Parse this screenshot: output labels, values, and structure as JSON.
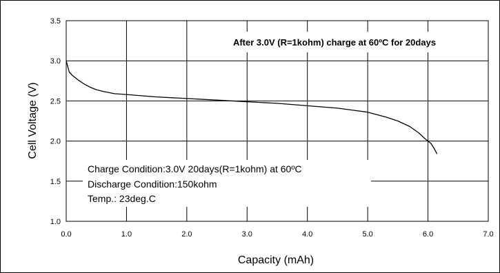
{
  "chart_data": {
    "type": "line",
    "title": "After 3.0V (R=1kohm) charge at 60ºC for 20days",
    "xlabel": "Capacity (mAh)",
    "ylabel": "Cell Voltage (V)",
    "xlim": [
      0,
      7
    ],
    "ylim": [
      1.0,
      3.5
    ],
    "x_ticks": [
      "0.0",
      "1.0",
      "2.0",
      "3.0",
      "4.0",
      "5.0",
      "6.0",
      "7.0"
    ],
    "y_ticks": [
      "1.0",
      "1.5",
      "2.0",
      "2.5",
      "3.0",
      "3.5"
    ],
    "grid": true,
    "annotations": [
      "Charge Condition:3.0V 20days(R=1kohm) at 60ºC",
      "Discharge Condition:150kohm",
      "Temp.: 23deg.C"
    ],
    "series": [
      {
        "color": "#000000",
        "x": [
          0.0,
          0.05,
          0.1,
          0.2,
          0.3,
          0.4,
          0.5,
          0.6,
          0.8,
          1.0,
          1.5,
          2.0,
          2.5,
          3.0,
          3.5,
          4.0,
          4.5,
          5.0,
          5.3,
          5.5,
          5.7,
          5.85,
          5.95,
          6.05,
          6.1,
          6.15
        ],
        "y": [
          3.0,
          2.86,
          2.82,
          2.76,
          2.71,
          2.67,
          2.64,
          2.62,
          2.59,
          2.58,
          2.55,
          2.53,
          2.51,
          2.49,
          2.47,
          2.44,
          2.41,
          2.36,
          2.3,
          2.25,
          2.18,
          2.1,
          2.03,
          1.97,
          1.91,
          1.84
        ]
      }
    ]
  }
}
